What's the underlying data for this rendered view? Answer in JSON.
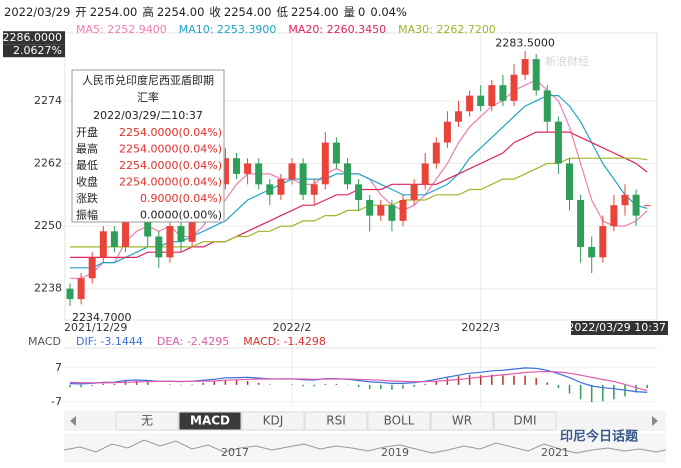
{
  "header": {
    "date": "2022/03/29",
    "items": [
      {
        "label": "开",
        "value": "2254.00"
      },
      {
        "label": "高",
        "value": "2254.00"
      },
      {
        "label": "收",
        "value": "2254.00"
      },
      {
        "label": "低",
        "value": "2254.00"
      },
      {
        "label": "量",
        "value": "0"
      }
    ],
    "change": "0.04%"
  },
  "tooltip": {
    "title": [
      "人民币兑印度尼西亚盾即期",
      "汇率"
    ],
    "time": "2022/03/29/二10:37",
    "rows": [
      {
        "label": "开盘",
        "value": "2254.0000(0.04%)",
        "color": "#e0302a"
      },
      {
        "label": "最高",
        "value": "2254.0000(0.04%)",
        "color": "#e0302a"
      },
      {
        "label": "最低",
        "value": "2254.0000(0.04%)",
        "color": "#e0302a"
      },
      {
        "label": "收盘",
        "value": "2254.0000(0.04%)",
        "color": "#e0302a"
      },
      {
        "label": "涨跌",
        "value": "0.9000(0.04%)",
        "color": "#e0302a"
      },
      {
        "label": "振幅",
        "value": "0.0000(0.00%)",
        "color": "#222222"
      }
    ]
  },
  "chart_data": [
    {
      "type": "candlestick",
      "categories": [
        "2021/12/29",
        null,
        null,
        null,
        null,
        null,
        null,
        null,
        null,
        null,
        null,
        null,
        null,
        null,
        null,
        null,
        null,
        null,
        null,
        null,
        "2022/2",
        null,
        null,
        null,
        null,
        null,
        null,
        null,
        null,
        null,
        null,
        null,
        null,
        null,
        null,
        null,
        null,
        "2022/3",
        null,
        null,
        null,
        null,
        null,
        null,
        null,
        null,
        null,
        null,
        null,
        null,
        null,
        null,
        "2022/03/29 10:37"
      ],
      "open": [
        2238,
        2236,
        2240,
        2244,
        2249,
        2246,
        2256,
        2252,
        2248,
        2244,
        2250,
        2247,
        2252,
        2256,
        2258,
        2263,
        2260,
        2262,
        2258,
        2256,
        2259,
        2262,
        2256,
        2258,
        2266,
        2262,
        2258,
        2255,
        2252,
        2254,
        2251,
        2255,
        2258,
        2262,
        2266,
        2270,
        2272,
        2275,
        2273,
        2277,
        2274,
        2279,
        2282,
        2276,
        2270,
        2262,
        2255,
        2246,
        2244,
        2250,
        2254,
        2256,
        2254
      ],
      "high": [
        2239,
        2241,
        2245,
        2250,
        2250,
        2258,
        2258,
        2253,
        2249,
        2251,
        2252,
        2253,
        2257,
        2260,
        2265,
        2264,
        2263,
        2263,
        2259,
        2260,
        2263,
        2263,
        2259,
        2268,
        2267,
        2263,
        2259,
        2256,
        2255,
        2255,
        2256,
        2259,
        2264,
        2267,
        2272,
        2274,
        2276,
        2277,
        2278,
        2279,
        2281,
        2283.5,
        2283,
        2277,
        2271,
        2263,
        2256,
        2248,
        2252,
        2256,
        2258,
        2257,
        2254
      ],
      "low": [
        2234.7,
        2235,
        2239,
        2243,
        2245,
        2245,
        2251,
        2246,
        2242,
        2243,
        2245,
        2246,
        2251,
        2255,
        2257,
        2259,
        2258,
        2257,
        2254,
        2255,
        2258,
        2255,
        2254,
        2257,
        2261,
        2257,
        2253,
        2249,
        2251,
        2249,
        2250,
        2254,
        2257,
        2261,
        2265,
        2269,
        2271,
        2272,
        2272,
        2273,
        2273,
        2278,
        2275,
        2268,
        2260,
        2253,
        2243,
        2241,
        2243,
        2249,
        2252,
        2250,
        2254
      ],
      "close": [
        2236,
        2240,
        2244,
        2249,
        2246,
        2256,
        2252,
        2248,
        2244,
        2250,
        2247,
        2252,
        2256,
        2258,
        2263,
        2260,
        2262,
        2258,
        2256,
        2259,
        2262,
        2256,
        2258,
        2266,
        2262,
        2258,
        2255,
        2252,
        2254,
        2251,
        2255,
        2258,
        2262,
        2266,
        2270,
        2272,
        2275,
        2273,
        2277,
        2274,
        2279,
        2282,
        2276,
        2270,
        2262,
        2255,
        2246,
        2244,
        2250,
        2254,
        2256,
        2252,
        2254
      ],
      "up_color": "#e8443a",
      "down_color": "#2e9e58",
      "ylim": [
        2232,
        2287
      ],
      "yticks": [
        2238,
        2250,
        2262,
        2274
      ],
      "grid": true,
      "crosshair": {
        "value": 2286,
        "label": "2286.0000",
        "percent": "2.0627%"
      },
      "max_label": "2283.5000",
      "min_label": "2234.7000",
      "series": [
        {
          "label": "MA5: 2252.9400",
          "color": "#f07fb0",
          "values": [
            2240,
            2240,
            2241,
            2243,
            2243,
            2247,
            2249,
            2250,
            2249,
            2250,
            2248,
            2248,
            2250,
            2253,
            2255,
            2258,
            2260,
            2260,
            2260,
            2259,
            2259,
            2258,
            2258,
            2260,
            2261,
            2260,
            2260,
            2259,
            2256,
            2254,
            2253,
            2254,
            2256,
            2259,
            2262,
            2266,
            2269,
            2271,
            2273,
            2274,
            2276,
            2277,
            2278,
            2276,
            2274,
            2269,
            2262,
            2255,
            2251,
            2250,
            2250,
            2251,
            2252.94
          ]
        },
        {
          "label": "MA10: 2253.3900",
          "color": "#1ea6c8",
          "values": [
            2242,
            2242,
            2242,
            2243,
            2243,
            2244,
            2245,
            2246,
            2246,
            2247,
            2247,
            2248,
            2249,
            2250,
            2251,
            2253,
            2255,
            2256,
            2257,
            2258,
            2259,
            2259,
            2259,
            2259,
            2260,
            2260,
            2260,
            2259,
            2258,
            2257,
            2256,
            2256,
            2256,
            2257,
            2258,
            2260,
            2263,
            2265,
            2267,
            2269,
            2271,
            2273,
            2274,
            2275,
            2275,
            2273,
            2270,
            2266,
            2262,
            2259,
            2256,
            2254,
            2253.39
          ]
        },
        {
          "label": "MA20: 2260.3450",
          "color": "#e0245e",
          "values": [
            2244,
            2244,
            2244,
            2244,
            2244,
            2244,
            2244,
            2245,
            2245,
            2245,
            2245,
            2246,
            2246,
            2247,
            2247,
            2248,
            2249,
            2250,
            2251,
            2252,
            2253,
            2254,
            2254,
            2255,
            2256,
            2256,
            2257,
            2257,
            2257,
            2258,
            2258,
            2258,
            2258,
            2258,
            2259,
            2260,
            2261,
            2262,
            2263,
            2264,
            2266,
            2267,
            2268,
            2268,
            2268,
            2268,
            2267,
            2266,
            2265,
            2264,
            2263,
            2262,
            2260.345
          ]
        },
        {
          "label": "MA30: 2262.7200",
          "color": "#9fb52a",
          "values": [
            2246,
            2246,
            2246,
            2246,
            2246,
            2246,
            2246,
            2246,
            2246,
            2246,
            2246,
            2246,
            2247,
            2247,
            2247,
            2248,
            2248,
            2249,
            2249,
            2250,
            2250,
            2251,
            2251,
            2252,
            2252,
            2253,
            2253,
            2254,
            2254,
            2254,
            2255,
            2255,
            2255,
            2256,
            2256,
            2256,
            2257,
            2257,
            2258,
            2259,
            2259,
            2260,
            2261,
            2262,
            2262,
            2263,
            2263,
            2263,
            2263,
            2263,
            2263,
            2263,
            2262.72
          ]
        }
      ]
    },
    {
      "type": "macd",
      "title": "MACD",
      "ylim": [
        -10,
        14
      ],
      "yticks": [
        7,
        -7
      ],
      "series": [
        {
          "label": "DIF: -3.1444",
          "color": "#3a6fe0",
          "values": [
            0.5,
            0.4,
            0.6,
            1.0,
            1.1,
            1.8,
            2.0,
            1.8,
            1.4,
            1.5,
            1.3,
            1.5,
            1.9,
            2.3,
            2.9,
            3.0,
            3.1,
            2.8,
            2.5,
            2.4,
            2.5,
            2.1,
            2.0,
            2.6,
            2.6,
            2.3,
            1.8,
            1.2,
            1.0,
            0.6,
            0.6,
            0.9,
            1.5,
            2.3,
            3.2,
            4.0,
            4.8,
            5.2,
            5.8,
            6.0,
            6.5,
            7.0,
            6.8,
            6.0,
            4.6,
            3.0,
            1.0,
            -0.5,
            -1.2,
            -1.6,
            -2.2,
            -2.8,
            -3.1444
          ]
        },
        {
          "label": "DEA: -2.4295",
          "color": "#e05aa8",
          "values": [
            1.0,
            0.9,
            0.8,
            0.8,
            0.9,
            1.0,
            1.2,
            1.3,
            1.4,
            1.4,
            1.4,
            1.4,
            1.5,
            1.6,
            1.9,
            2.1,
            2.3,
            2.4,
            2.4,
            2.4,
            2.4,
            2.4,
            2.3,
            2.4,
            2.4,
            2.4,
            2.3,
            2.1,
            1.9,
            1.6,
            1.4,
            1.3,
            1.3,
            1.5,
            1.8,
            2.2,
            2.7,
            3.2,
            3.7,
            4.1,
            4.6,
            5.1,
            5.4,
            5.5,
            5.3,
            4.8,
            4.0,
            3.1,
            2.2,
            1.4,
            0.2,
            -1.2,
            -2.4295
          ]
        }
      ],
      "bars": {
        "label": "MACD: -1.4298",
        "color": "#e0302a",
        "up_color": "#b5302a",
        "down_color": "#2e9e58",
        "values": [
          -1.0,
          -1.0,
          -0.4,
          0.4,
          0.4,
          1.6,
          1.6,
          1.0,
          0,
          0.2,
          -0.2,
          0.2,
          0.8,
          1.4,
          2.0,
          1.8,
          1.6,
          0.8,
          0.2,
          0,
          0.2,
          -0.6,
          -0.6,
          0.4,
          0.4,
          -0.2,
          -1.0,
          -1.8,
          -1.8,
          -2.0,
          -1.6,
          -0.8,
          0.4,
          1.6,
          2.8,
          3.6,
          4.2,
          4.0,
          4.2,
          3.8,
          3.8,
          3.8,
          2.8,
          1.0,
          -1.4,
          -3.6,
          -6.0,
          -7.2,
          -6.8,
          -6.0,
          -4.8,
          -3.2,
          -1.4298
        ]
      }
    }
  ],
  "tabs": {
    "items": [
      "无",
      "MACD",
      "KDJ",
      "RSI",
      "BOLL",
      "WR",
      "DMI"
    ],
    "selected": "MACD"
  },
  "navigator": {
    "years": [
      "2017",
      "2019",
      "2021"
    ]
  },
  "watermark": {
    "brand": "新浪财经",
    "account": "印尼今日话题"
  }
}
